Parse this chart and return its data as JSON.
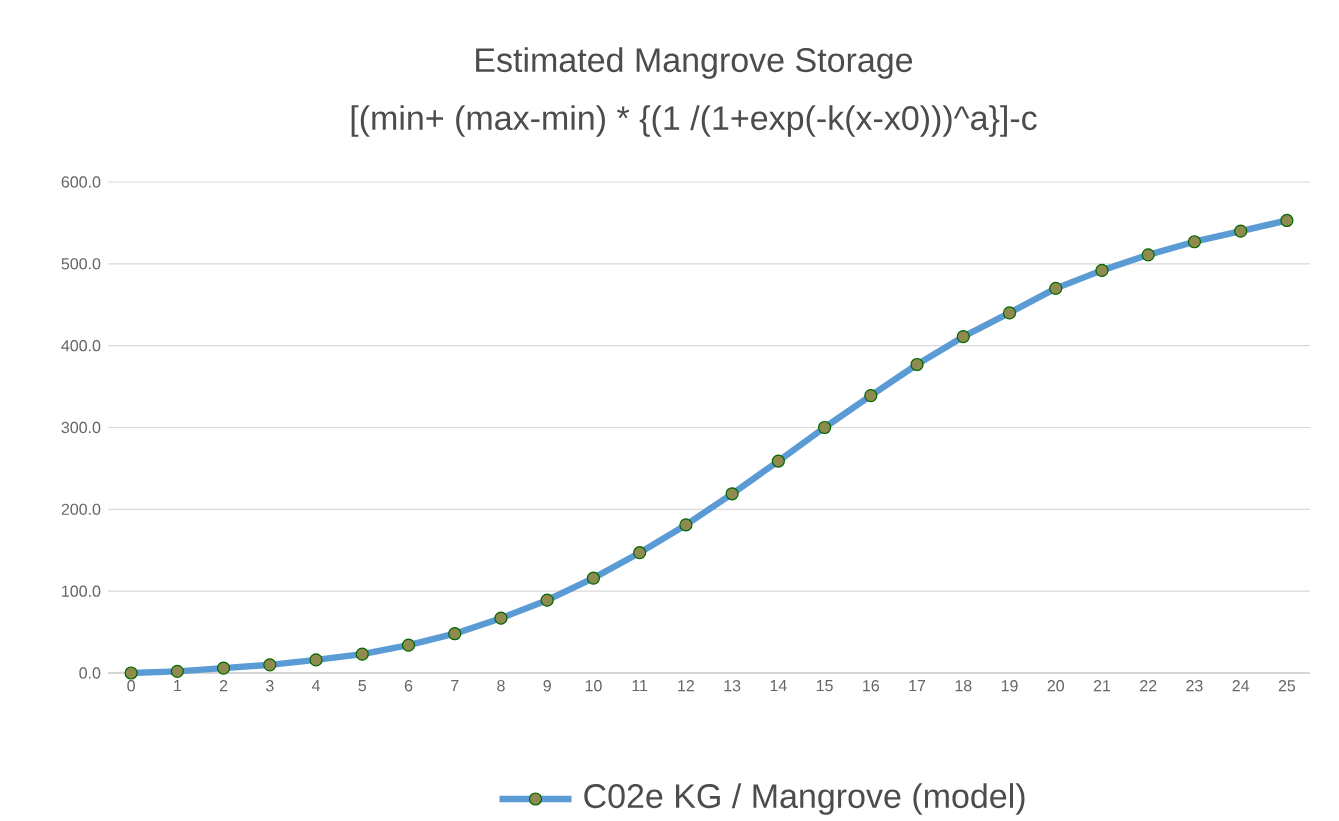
{
  "chart_data": {
    "type": "line",
    "title": "Estimated Mangrove Storage",
    "subtitle": "[(min+ (max-min) * {(1 /(1+exp(-k(x-x0)))^a}]-c",
    "categories": [
      "0",
      "1",
      "2",
      "3",
      "4",
      "5",
      "6",
      "7",
      "8",
      "9",
      "10",
      "11",
      "12",
      "13",
      "14",
      "15",
      "16",
      "17",
      "18",
      "19",
      "20",
      "21",
      "22",
      "23",
      "24",
      "25"
    ],
    "series": [
      {
        "name": "C02e KG / Mangrove (model)",
        "color": "#5b9bd5",
        "values": [
          0,
          2,
          6,
          10,
          16,
          23,
          34,
          48,
          67,
          89,
          116,
          147,
          181,
          219,
          259,
          300,
          339,
          377,
          411,
          440,
          470,
          492,
          511,
          527,
          540,
          553
        ]
      }
    ],
    "ylim": [
      0,
      600
    ],
    "yticks": [
      {
        "value": 0,
        "label": "0.0"
      },
      {
        "value": 100,
        "label": "100.0"
      },
      {
        "value": 200,
        "label": "200.0"
      },
      {
        "value": 300,
        "label": "300.0"
      },
      {
        "value": 400,
        "label": "400.0"
      },
      {
        "value": 500,
        "label": "500.0"
      },
      {
        "value": 600,
        "label": "600.0"
      }
    ],
    "grid": "y",
    "legend": "bottom",
    "marker": "circle",
    "line_style": "solid"
  }
}
